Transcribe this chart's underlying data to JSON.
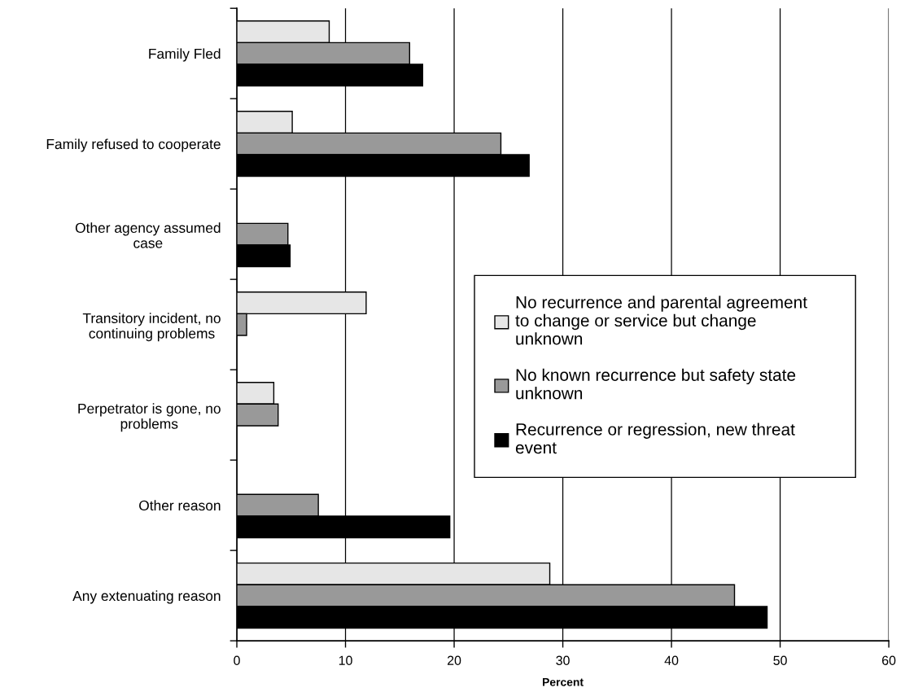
{
  "chart_data": {
    "type": "bar",
    "orientation": "horizontal",
    "xlabel": "Percent",
    "categories": [
      "Family Fled",
      "Family refused to cooperate",
      "Other agency assumed\ncase",
      "Transitory incident, no\ncontinuing problems",
      "Perpetrator is gone, no\nproblems",
      "Other reason",
      "Any extenuating reason"
    ],
    "series": [
      {
        "name": "No recurrence and parental agreement\nto change or service but change\nunknown",
        "color": "#e6e6e6",
        "values": [
          8.5,
          5.1,
          null,
          11.9,
          3.4,
          null,
          28.8
        ]
      },
      {
        "name": "No known recurrence but safety state\nunknown",
        "color": "#999999",
        "values": [
          15.9,
          24.3,
          4.7,
          0.9,
          3.8,
          7.5,
          45.8
        ]
      },
      {
        "name": "Recurrence or regression, new threat\nevent",
        "color": "#000000",
        "values": [
          17.1,
          26.9,
          4.9,
          null,
          null,
          19.6,
          48.8
        ]
      }
    ],
    "xlim": [
      0,
      60
    ],
    "xticks": [
      0,
      10,
      20,
      30,
      40,
      50,
      60
    ],
    "grid": "x",
    "legend": "right"
  }
}
